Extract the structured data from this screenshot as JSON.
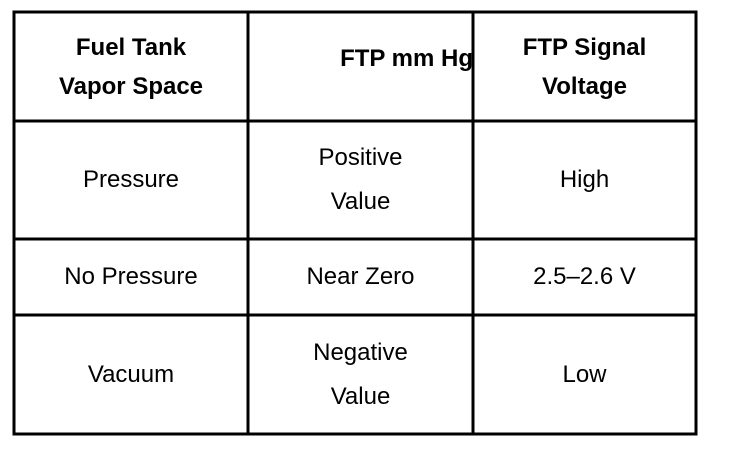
{
  "table": {
    "headers": [
      {
        "line1": "Fuel Tank",
        "line2": "Vapor Space"
      },
      {
        "line1": "",
        "line2": "FTP mm Hg"
      },
      {
        "line1": "FTP Signal",
        "line2": "Voltage"
      }
    ],
    "rows": [
      {
        "vapor_space": "Pressure",
        "ftp_mmhg": [
          "Positive",
          "Value"
        ],
        "voltage": "High"
      },
      {
        "vapor_space": "No Pressure",
        "ftp_mmhg": [
          "Near Zero"
        ],
        "voltage": "2.5–2.6 V"
      },
      {
        "vapor_space": "Vacuum",
        "ftp_mmhg": [
          "Negative",
          "Value"
        ],
        "voltage": "Low"
      }
    ]
  }
}
